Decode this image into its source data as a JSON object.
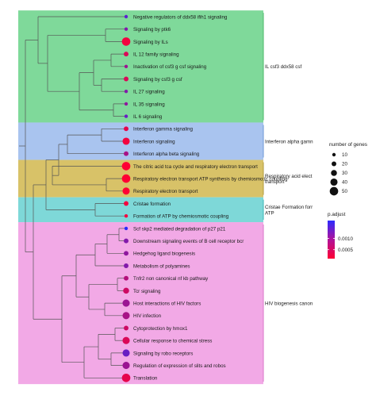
{
  "chart_data": {
    "type": "scatter",
    "subtype": "tree-clustered pathway enrichment plot",
    "terms": [
      {
        "label": "Negative regulators of ddx58 ifih1 signaling",
        "genes": 10,
        "padj": 0.0014
      },
      {
        "label": "Signaling by ptk6",
        "genes": 10,
        "padj": 0.0011
      },
      {
        "label": "Signaling by ILs",
        "genes": 50,
        "padj": 0.0002
      },
      {
        "label": "IL 12 family signaling",
        "genes": 20,
        "padj": 0.0004
      },
      {
        "label": "Inactivation of csf3 g csf signaling",
        "genes": 10,
        "padj": 0.0009
      },
      {
        "label": "Signaling by csf3 g csf",
        "genes": 20,
        "padj": 0.0004
      },
      {
        "label": "IL 27 signaling",
        "genes": 10,
        "padj": 0.0011
      },
      {
        "label": "IL 35 signaling",
        "genes": 10,
        "padj": 0.001
      },
      {
        "label": "IL 6 signaling",
        "genes": 10,
        "padj": 0.0013
      },
      {
        "label": "Interferon gamma signaling",
        "genes": 20,
        "padj": 0.0003
      },
      {
        "label": "Interferon signaling",
        "genes": 40,
        "padj": 0.0002
      },
      {
        "label": "Interferon alpha beta signaling",
        "genes": 20,
        "padj": 0.0008
      },
      {
        "label": "The citric acid tca cycle and respiratory electron transport",
        "genes": 50,
        "padj": 0.0001
      },
      {
        "label": "Respiratory electron transport ATP synthesis by chemiosmotic coupling",
        "genes": 50,
        "padj": 0.0001
      },
      {
        "label": "Respiratory electron transport",
        "genes": 40,
        "padj": 0.0001
      },
      {
        "label": "Cristae formation",
        "genes": 20,
        "padj": 0.0002
      },
      {
        "label": "Formation of ATP by chemiosmotic coupling",
        "genes": 10,
        "padj": 0.0002
      },
      {
        "label": "Scf skp2 mediated degradation of p27 p21",
        "genes": 10,
        "padj": 0.0018
      },
      {
        "label": "Downstream signaling events of B cell receptor bcr",
        "genes": 20,
        "padj": 0.0011
      },
      {
        "label": "Hedgehog ligand biogenesis",
        "genes": 20,
        "padj": 0.001
      },
      {
        "label": "Metabolism of polyamines",
        "genes": 20,
        "padj": 0.0011
      },
      {
        "label": "Tnfr2 non canonical nf kb pathway",
        "genes": 20,
        "padj": 0.0007
      },
      {
        "label": "Tcr signaling",
        "genes": 30,
        "padj": 0.0005
      },
      {
        "label": "Host interactions of HIV factors",
        "genes": 40,
        "padj": 0.0009
      },
      {
        "label": "HIV infection",
        "genes": 40,
        "padj": 0.0008
      },
      {
        "label": "Cytoprotection by hmox1",
        "genes": 20,
        "padj": 0.0005
      },
      {
        "label": "Cellular response to chemical stress",
        "genes": 40,
        "padj": 0.0004
      },
      {
        "label": "Signaling by robo receptors",
        "genes": 40,
        "padj": 0.0013
      },
      {
        "label": "Regulation of expression of slits and robos",
        "genes": 40,
        "padj": 0.0009
      },
      {
        "label": "Translation",
        "genes": 50,
        "padj": 0.0003
      }
    ],
    "clusters": [
      {
        "label": "IL csf3 ddx58 csf",
        "start": 0,
        "end": 8,
        "color": "#7fd99a",
        "line_color": "#4cb86a"
      },
      {
        "label": "Interferon alpha gamn",
        "start": 9,
        "end": 11,
        "color": "#a9c4ef",
        "line_color": "#6d97d4"
      },
      {
        "label": "Respiratory acid elect transport",
        "start": 12,
        "end": 14,
        "color": "#d8c268",
        "line_color": "#b09a3c"
      },
      {
        "label": "Cristae Formation forr ATP",
        "start": 15,
        "end": 16,
        "color": "#7ed8d8",
        "line_color": "#3cb6b6"
      },
      {
        "label": "HIV biogenesis canon",
        "start": 17,
        "end": 29,
        "color": "#f2a9e6",
        "line_color": "#d975c8"
      }
    ],
    "size_legend": {
      "title": "number of genes",
      "values": [
        10,
        20,
        30,
        40,
        50
      ]
    },
    "color_legend": {
      "title": "p.adjust",
      "ticks": [
        0.001,
        0.0005
      ],
      "tick_labels": [
        "0.0010",
        "0.0005"
      ],
      "min": 0.0001,
      "max": 0.0018,
      "low_color": "#ff0033",
      "high_color": "#2b2bff"
    }
  }
}
